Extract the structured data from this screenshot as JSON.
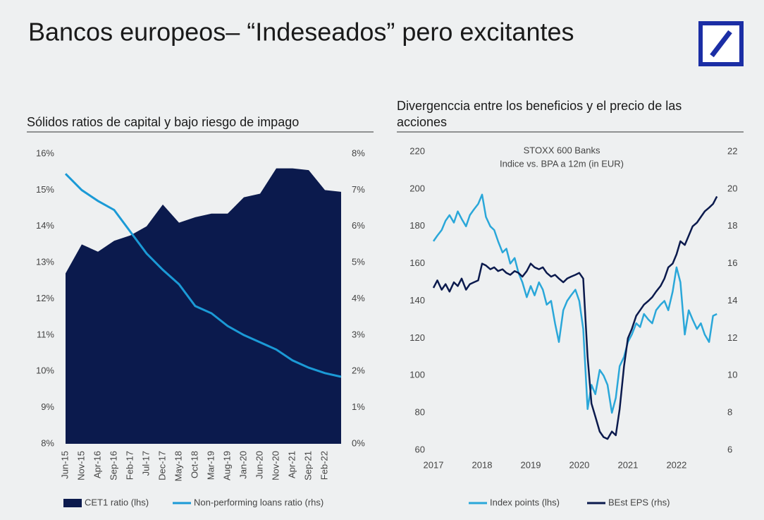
{
  "header": {
    "title": "Bancos europeos– “Indeseados” pero excitantes"
  },
  "chart_data": [
    {
      "type": "area",
      "title": "Sólidos ratios de capital y bajo riesgo de impago",
      "categories": [
        "Jun-15",
        "Nov-15",
        "Apr-16",
        "Sep-16",
        "Feb-17",
        "Jul-17",
        "Dec-17",
        "May-18",
        "Oct-18",
        "Mar-19",
        "Aug-19",
        "Jan-20",
        "Jun-20",
        "Nov-20",
        "Apr-21",
        "Sep-21",
        "Feb-22",
        null
      ],
      "series": [
        {
          "name": "CET1 ratio (lhs)",
          "type": "area",
          "color": "#0b1a4d",
          "values": [
            12.7,
            13.5,
            13.3,
            13.6,
            13.75,
            14.0,
            14.6,
            14.1,
            14.25,
            14.35,
            14.35,
            14.8,
            14.9,
            15.6,
            15.6,
            15.55,
            15.0,
            14.95
          ]
        },
        {
          "name": "Non-performing loans ratio (rhs)",
          "type": "line",
          "axis": "y2",
          "color": "#1b9ad6",
          "values": [
            7.45,
            7.0,
            6.7,
            6.45,
            5.85,
            5.25,
            4.8,
            4.4,
            3.8,
            3.6,
            3.25,
            3.0,
            2.8,
            2.6,
            2.3,
            2.1,
            1.95,
            1.85
          ]
        }
      ],
      "ylim": [
        8,
        16
      ],
      "yticks": [
        {
          "value": 8,
          "label": "8%"
        },
        {
          "value": 9,
          "label": "9%"
        },
        {
          "value": 10,
          "label": "10%"
        },
        {
          "value": 11,
          "label": "11%"
        },
        {
          "value": 12,
          "label": "12%"
        },
        {
          "value": 13,
          "label": "13%"
        },
        {
          "value": 14,
          "label": "14%"
        },
        {
          "value": 15,
          "label": "15%"
        },
        {
          "value": 16,
          "label": "16%"
        }
      ],
      "y2lim": [
        0,
        8
      ],
      "y2ticks": [
        {
          "value": 0,
          "label": "0%"
        },
        {
          "value": 1,
          "label": "1%"
        },
        {
          "value": 2,
          "label": "2%"
        },
        {
          "value": 3,
          "label": "3%"
        },
        {
          "value": 4,
          "label": "4%"
        },
        {
          "value": 5,
          "label": "5%"
        },
        {
          "value": 6,
          "label": "6%"
        },
        {
          "value": 7,
          "label": "7%"
        },
        {
          "value": 8,
          "label": "8%"
        }
      ],
      "grid": false,
      "legend": "bottom"
    },
    {
      "type": "line",
      "title": "Divergenccia entre los beneficios y el precio de las acciones",
      "annotations": [
        "STOXX 600 Banks",
        "Indice vs. BPA a 12m (in EUR)"
      ],
      "x": [
        2017,
        2017.08,
        2017.17,
        2017.25,
        2017.33,
        2017.42,
        2017.5,
        2017.58,
        2017.67,
        2017.75,
        2017.83,
        2017.92,
        2018,
        2018.08,
        2018.17,
        2018.25,
        2018.33,
        2018.42,
        2018.5,
        2018.58,
        2018.67,
        2018.75,
        2018.83,
        2018.92,
        2019,
        2019.08,
        2019.17,
        2019.25,
        2019.33,
        2019.42,
        2019.5,
        2019.58,
        2019.67,
        2019.75,
        2019.83,
        2019.92,
        2020,
        2020.08,
        2020.17,
        2020.25,
        2020.33,
        2020.42,
        2020.5,
        2020.58,
        2020.67,
        2020.75,
        2020.83,
        2020.92,
        2021,
        2021.08,
        2021.17,
        2021.25,
        2021.33,
        2021.42,
        2021.5,
        2021.58,
        2021.67,
        2021.75,
        2021.83,
        2021.92,
        2022,
        2022.08,
        2022.17,
        2022.25,
        2022.33,
        2022.42,
        2022.5,
        2022.58,
        2022.67,
        2022.75,
        2022.83
      ],
      "series": [
        {
          "name": "Index points (lhs)",
          "color": "#2aa7d9",
          "values": [
            172,
            175,
            178,
            183,
            186,
            182,
            188,
            184,
            180,
            186,
            189,
            192,
            197,
            185,
            180,
            178,
            172,
            166,
            168,
            160,
            163,
            155,
            150,
            142,
            148,
            143,
            150,
            146,
            138,
            140,
            128,
            118,
            135,
            140,
            143,
            146,
            140,
            125,
            82,
            95,
            90,
            103,
            100,
            95,
            80,
            88,
            105,
            110,
            118,
            122,
            128,
            126,
            133,
            130,
            128,
            135,
            138,
            140,
            135,
            145,
            158,
            150,
            122,
            135,
            130,
            125,
            128,
            122,
            118,
            132,
            133
          ]
        },
        {
          "name": "BEst EPS (rhs)",
          "axis": "y2",
          "color": "#0b1a4d",
          "values": [
            14.7,
            15.1,
            14.6,
            14.9,
            14.5,
            15.0,
            14.8,
            15.2,
            14.6,
            14.9,
            15.0,
            15.1,
            16.0,
            15.9,
            15.7,
            15.8,
            15.6,
            15.7,
            15.5,
            15.4,
            15.6,
            15.5,
            15.3,
            15.6,
            16.0,
            15.8,
            15.7,
            15.8,
            15.5,
            15.3,
            15.4,
            15.2,
            15.0,
            15.2,
            15.3,
            15.4,
            15.5,
            15.2,
            11.0,
            8.5,
            7.8,
            7.0,
            6.7,
            6.6,
            7.0,
            6.8,
            8.2,
            10.5,
            12.0,
            12.5,
            13.2,
            13.5,
            13.8,
            14.0,
            14.2,
            14.5,
            14.8,
            15.2,
            15.8,
            16.0,
            16.5,
            17.2,
            17.0,
            17.5,
            18.0,
            18.2,
            18.5,
            18.8,
            19.0,
            19.2,
            19.6
          ]
        }
      ],
      "xlim": [
        2017,
        2022.9
      ],
      "xticks": [
        2017,
        2018,
        2019,
        2020,
        2021,
        2022
      ],
      "ylim": [
        60,
        220
      ],
      "yticks": [
        60,
        80,
        100,
        120,
        140,
        160,
        180,
        200,
        220
      ],
      "y2lim": [
        6,
        22
      ],
      "y2ticks": [
        6,
        8,
        10,
        12,
        14,
        16,
        18,
        20,
        22
      ],
      "grid": false,
      "legend": "bottom"
    }
  ]
}
